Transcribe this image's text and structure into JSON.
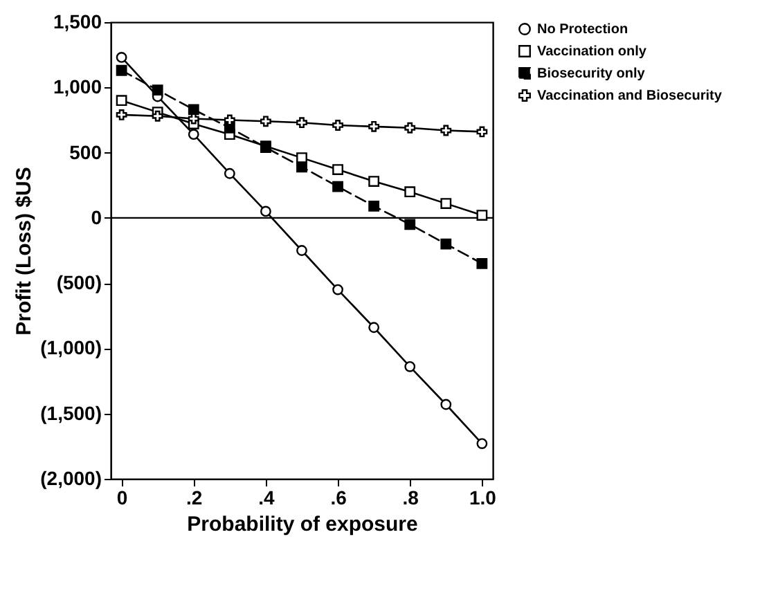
{
  "chart_data": {
    "type": "line",
    "xlabel": "Probability of exposure",
    "ylabel": "Profit (Loss) $US",
    "x": [
      0,
      0.1,
      0.2,
      0.3,
      0.4,
      0.5,
      0.6,
      0.7,
      0.8,
      0.9,
      1.0
    ],
    "series": [
      {
        "name": "No Protection",
        "color": "#000000",
        "marker": "circle",
        "line_style": "solid",
        "values": [
          1230,
          930,
          640,
          340,
          50,
          -250,
          -550,
          -840,
          -1140,
          -1430,
          -1730
        ]
      },
      {
        "name": "Vaccination only",
        "color": "#000000",
        "marker": "square",
        "line_style": "solid",
        "values": [
          900,
          810,
          720,
          640,
          550,
          460,
          370,
          280,
          200,
          110,
          20
        ]
      },
      {
        "name": "Biosecurity only",
        "color": "#000000",
        "marker": "square",
        "line_style": "dashed",
        "values": [
          1130,
          980,
          830,
          690,
          540,
          390,
          240,
          90,
          -50,
          -200,
          -350
        ]
      },
      {
        "name": "Vaccination and Biosecurity",
        "color": "#000000",
        "marker": "cross",
        "line_style": "solid",
        "values": [
          790,
          780,
          760,
          750,
          740,
          730,
          710,
          700,
          690,
          670,
          660
        ]
      }
    ],
    "xlim": [
      -0.03,
      1.03
    ],
    "xticks": [
      {
        "value": 0,
        "label": "0"
      },
      {
        "value": 0.2,
        "label": ".2"
      },
      {
        "value": 0.4,
        "label": ".4"
      },
      {
        "value": 0.6,
        "label": ".6"
      },
      {
        "value": 0.8,
        "label": ".8"
      },
      {
        "value": 1.0,
        "label": "1.0"
      }
    ],
    "ylim": [
      -2000,
      1500
    ],
    "yticks": [
      {
        "value": -2000,
        "label": "(2,000)"
      },
      {
        "value": -1500,
        "label": "(1,500)"
      },
      {
        "value": -1000,
        "label": "(1,000)"
      },
      {
        "value": -500,
        "label": "(500)"
      },
      0,
      500,
      {
        "value": 1000,
        "label": "1,000"
      },
      {
        "value": 1500,
        "label": "1,500"
      }
    ],
    "ref_lines": [
      {
        "axis": "y",
        "value": 0,
        "color": "#000000"
      }
    ],
    "grid": false,
    "legend": "right"
  }
}
